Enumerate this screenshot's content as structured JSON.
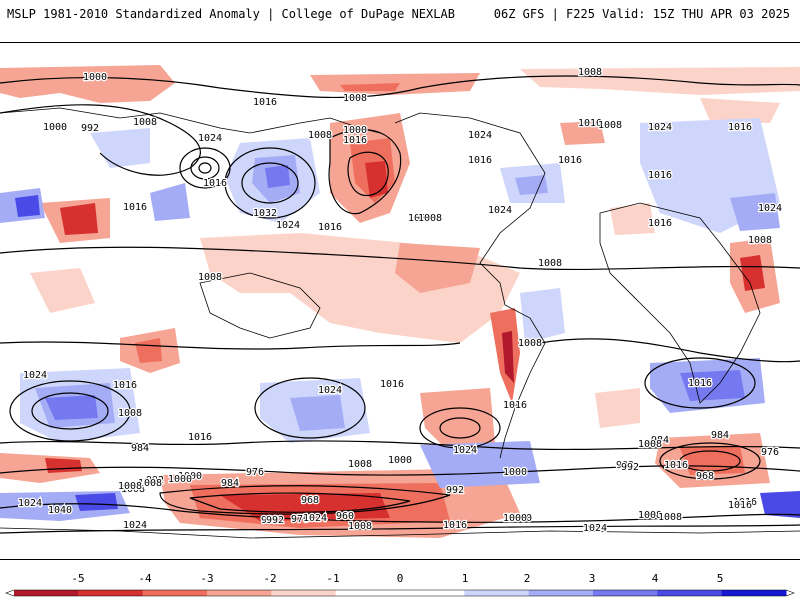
{
  "header": {
    "left": "MSLP 1981-2010 Standardized Anomaly | College of DuPage NEXLAB",
    "right": "06Z GFS | F225 Valid: 15Z THU APR 03 2025"
  },
  "colors": {
    "neg5": "#b2182b",
    "neg4": "#d6312f",
    "neg3": "#ef6f5e",
    "neg2": "#f6a493",
    "neg1": "#fbd3c8",
    "zero": "#ffffff",
    "pos1": "#cfd6fb",
    "pos2": "#a4acf6",
    "pos3": "#7579ef",
    "pos4": "#4a4ae7",
    "pos5": "#1717d6"
  },
  "colorbar": {
    "ticks": [
      "-5",
      "-4",
      "-3",
      "-2",
      "-1",
      "0",
      "1",
      "2",
      "3",
      "4",
      "5"
    ]
  },
  "isobar_labels": [
    "1000",
    "1008",
    "1016",
    "1024",
    "1032",
    "1040",
    "992",
    "984",
    "976",
    "968",
    "960"
  ],
  "map_labels": [
    {
      "text": "1000"
    },
    {
      "text": "1008"
    },
    {
      "text": "1008"
    },
    {
      "text": "1000"
    },
    {
      "text": "992"
    },
    {
      "text": "1008"
    },
    {
      "text": "1016"
    },
    {
      "text": "1016"
    },
    {
      "text": "1024"
    },
    {
      "text": "1016"
    },
    {
      "text": "1032"
    },
    {
      "text": "1024"
    },
    {
      "text": "1008"
    },
    {
      "text": "1000"
    },
    {
      "text": "1024"
    },
    {
      "text": "1016"
    },
    {
      "text": "1016"
    },
    {
      "text": "1008"
    },
    {
      "text": "1024"
    },
    {
      "text": "1016"
    },
    {
      "text": "1024"
    },
    {
      "text": "1016"
    },
    {
      "text": "1016"
    },
    {
      "text": "1024"
    },
    {
      "text": "1016"
    },
    {
      "text": "1008"
    },
    {
      "text": "1008"
    },
    {
      "text": "1016"
    },
    {
      "text": "1008"
    },
    {
      "text": "1016"
    },
    {
      "text": "1008"
    },
    {
      "text": "1008"
    },
    {
      "text": "1024"
    },
    {
      "text": "1016"
    },
    {
      "text": "1008"
    },
    {
      "text": "1016"
    },
    {
      "text": "1024"
    },
    {
      "text": "1016"
    },
    {
      "text": "1008"
    },
    {
      "text": "1016"
    },
    {
      "text": "1024"
    },
    {
      "text": "1008"
    },
    {
      "text": "1000"
    },
    {
      "text": "1016"
    },
    {
      "text": "984"
    },
    {
      "text": "992"
    },
    {
      "text": "1016"
    },
    {
      "text": "1008"
    },
    {
      "text": "992"
    },
    {
      "text": "1000"
    },
    {
      "text": "984"
    },
    {
      "text": "976"
    },
    {
      "text": "984"
    },
    {
      "text": "992"
    },
    {
      "text": "1000"
    },
    {
      "text": "1008"
    },
    {
      "text": "1008"
    },
    {
      "text": "1000"
    },
    {
      "text": "992"
    },
    {
      "text": "984"
    },
    {
      "text": "976"
    },
    {
      "text": "968"
    },
    {
      "text": "992"
    },
    {
      "text": "1000"
    },
    {
      "text": "1008"
    },
    {
      "text": "1016"
    },
    {
      "text": "1024"
    },
    {
      "text": "1040"
    },
    {
      "text": "1008"
    },
    {
      "text": "1024"
    },
    {
      "text": "992"
    },
    {
      "text": "976"
    },
    {
      "text": "968"
    },
    {
      "text": "960"
    },
    {
      "text": "1008"
    },
    {
      "text": "1016"
    },
    {
      "text": "1000"
    },
    {
      "text": "1024"
    },
    {
      "text": "1008"
    },
    {
      "text": "1016"
    },
    {
      "text": "1024"
    }
  ]
}
